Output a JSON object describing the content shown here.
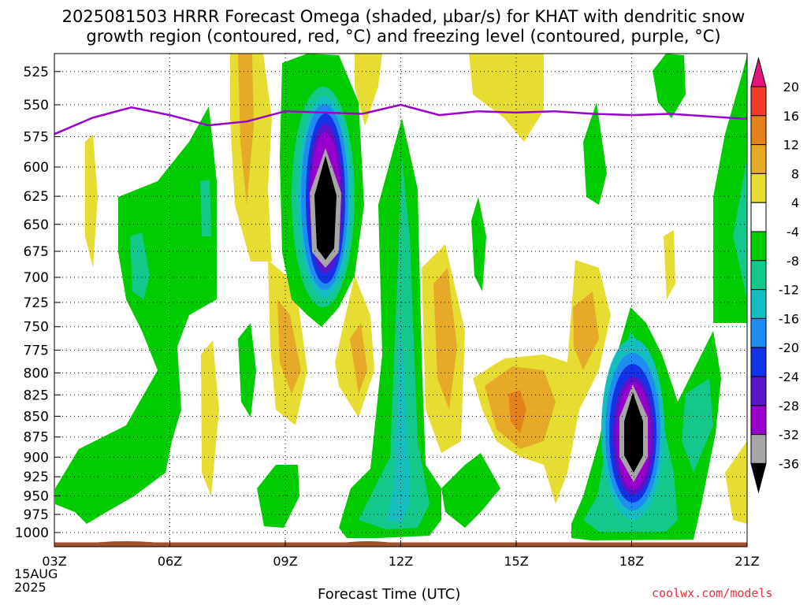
{
  "title_line1": "2025081503 HRRR Forecast Omega (shaded, µbar/s) for KHAT with dendritic snow",
  "title_line2": "growth region (contoured, red, °C) and freezing level (contoured, purple, °C)",
  "watermark": "coolwx.com/models",
  "chart_data": {
    "type": "heatmap",
    "title": "2025081503 HRRR Forecast Omega (shaded, µbar/s) for KHAT with dendritic snow growth region (contoured, red, °C) and freezing level (contoured, purple, °C)",
    "xlabel": "Forecast Time (UTC)",
    "ylabel": "",
    "x_ticks": [
      "03Z",
      "06Z",
      "09Z",
      "12Z",
      "15Z",
      "18Z",
      "21Z"
    ],
    "x_tick_hours": [
      3,
      6,
      9,
      12,
      15,
      18,
      21
    ],
    "x_date_label": [
      "15AUG",
      "2025"
    ],
    "xlim_hours": [
      3,
      21
    ],
    "y_ticks": [
      525,
      550,
      575,
      600,
      625,
      650,
      675,
      700,
      725,
      750,
      775,
      800,
      825,
      850,
      875,
      900,
      925,
      950,
      975,
      1000
    ],
    "ylim": [
      512,
      1020
    ],
    "y_scale": "log-pressure",
    "grid": true,
    "colorbar": {
      "levels": [
        -36,
        -32,
        -28,
        -24,
        -20,
        -16,
        -12,
        -8,
        -4,
        4,
        8,
        12,
        16,
        20
      ],
      "labels": [
        "20",
        "16",
        "12",
        "8",
        "4",
        "-4",
        "-8",
        "-12",
        "-16",
        "-20",
        "-24",
        "-28",
        "-32",
        "-36"
      ],
      "colors": {
        "below_-36": "#000000",
        "-36_-32": "#a6a6a6",
        "-32_-28": "#9900cc",
        "-28_-24": "#5a14c8",
        "-24_-20": "#1432e6",
        "-20_-16": "#1e8cf0",
        "-16_-12": "#14bebe",
        "-12_-8": "#14c88c",
        "-8_-4": "#00cc00",
        "-4_4": "#ffffff",
        "4_8": "#e6dc32",
        "8_12": "#e6aa28",
        "12_16": "#e6821e",
        "16_20": "#f03c28",
        "above_20": "#e6147e"
      }
    },
    "freezing_level": {
      "color": "#9900cc",
      "x_hours": [
        3,
        4,
        5,
        6,
        7,
        8,
        9,
        10,
        11,
        12,
        13,
        14,
        15,
        16,
        17,
        18,
        19,
        20,
        21
      ],
      "pressure_hpa": [
        573,
        560,
        552,
        558,
        566,
        563,
        555,
        556,
        557,
        550,
        558,
        555,
        556,
        555,
        557,
        558,
        557,
        559,
        561
      ]
    },
    "surface_line_color": "#a0522d",
    "features": [
      {
        "name": "upward-motion-core-10Z",
        "x_hour": 10,
        "pressure_hpa": 650,
        "min_omega": -36
      },
      {
        "name": "upward-motion-core-18Z",
        "x_hour": 18,
        "pressure_hpa": 875,
        "min_omega": -36
      },
      {
        "name": "sinking-max-15Z",
        "x_hour": 15,
        "pressure_hpa": 845,
        "max_omega": 12
      }
    ]
  }
}
